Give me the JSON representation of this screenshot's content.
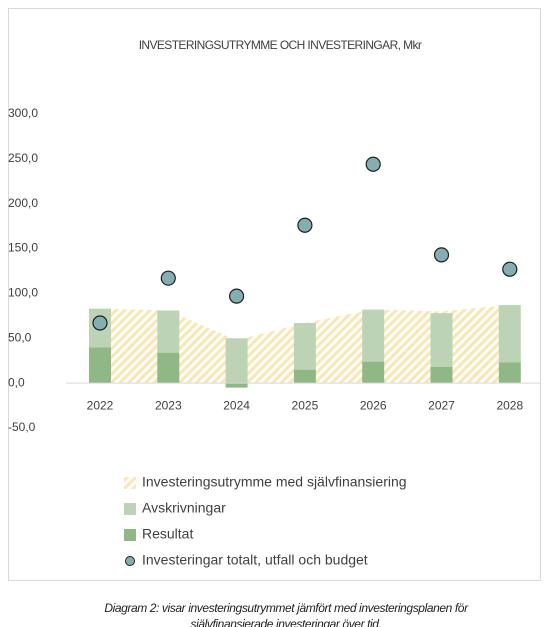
{
  "chart_data": {
    "type": "bar",
    "title": "INVESTERINGSUTRYMME OCH INVESTERINGAR, Mkr",
    "caption": [
      "Diagram 2:  visar investeringsutrymmet jämfört med investeringsplanen för",
      "självfinansierade investeringar över tid."
    ],
    "categories": [
      "2022",
      "2023",
      "2024",
      "2025",
      "2026",
      "2027",
      "2028"
    ],
    "series": [
      {
        "name": "Investeringsutrymme med självfinansiering",
        "type": "area",
        "color": "#f7e7b8",
        "values": [
          83,
          81,
          48,
          67,
          82,
          80,
          87
        ]
      },
      {
        "name": "Avskrivningar",
        "type": "bar",
        "color": "#bcd4b5",
        "values": [
          43,
          47,
          50,
          52,
          58,
          60,
          64
        ]
      },
      {
        "name": "Resultat",
        "type": "bar",
        "color": "#8fb886",
        "values": [
          40,
          34,
          -5,
          15,
          24,
          18,
          23
        ]
      },
      {
        "name": "Investeringar totalt, utfall och budget",
        "type": "scatter",
        "color": "#85aeb2",
        "values": [
          67,
          117,
          97,
          176,
          244,
          143,
          127
        ]
      }
    ],
    "ylim": [
      -50,
      300
    ],
    "yticks": [
      {
        "value": -50,
        "label": "-50,0"
      },
      {
        "value": 0,
        "label": "0,0"
      },
      {
        "value": 50,
        "label": "50,0"
      },
      {
        "value": 100,
        "label": "100,0"
      },
      {
        "value": 150,
        "label": "150,0"
      },
      {
        "value": 200,
        "label": "200,0"
      },
      {
        "value": 250,
        "label": "250,0"
      },
      {
        "value": 300,
        "label": "300,0"
      }
    ],
    "grid": false,
    "legend": "bottom"
  }
}
